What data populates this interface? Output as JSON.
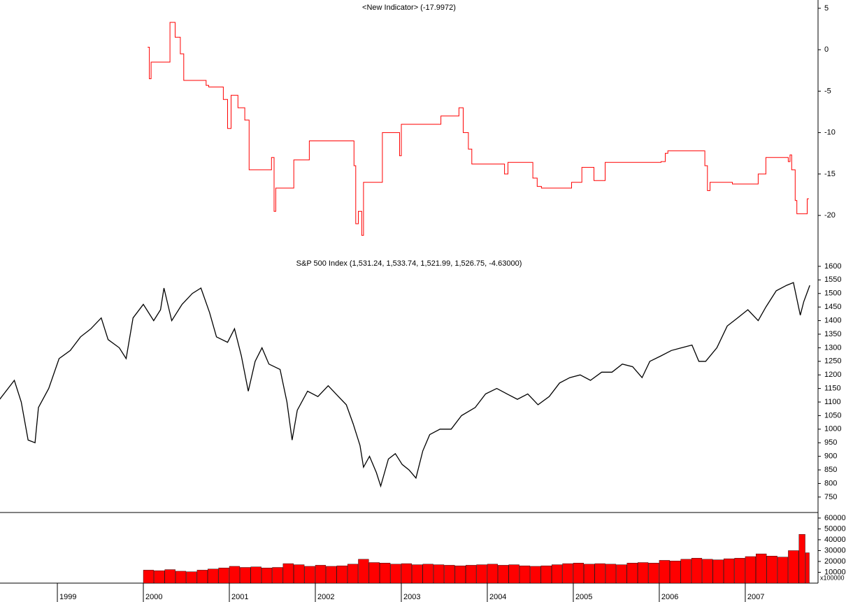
{
  "chart_data": [
    {
      "type": "step",
      "drawstyle": "steps-post",
      "title": "<New Indicator> (-17.9972)",
      "color": "#ff0000",
      "xlim": [
        1998.333,
        2007.83
      ],
      "ylim": [
        -24.8,
        6
      ],
      "yticks": [
        5,
        0,
        -5,
        -10,
        -15,
        -20
      ],
      "x": [
        2000.05,
        2000.07,
        2000.09,
        2000.31,
        2000.37,
        2000.43,
        2000.47,
        2000.73,
        2000.76,
        2000.93,
        2000.98,
        2001.02,
        2001.1,
        2001.18,
        2001.23,
        2001.49,
        2001.52,
        2001.54,
        2001.75,
        2001.93,
        2002.45,
        2002.47,
        2002.5,
        2002.54,
        2002.56,
        2002.78,
        2002.98,
        2003.0,
        2003.46,
        2003.67,
        2003.72,
        2003.78,
        2003.82,
        2004.2,
        2004.24,
        2004.53,
        2004.58,
        2004.63,
        2004.98,
        2005.1,
        2005.24,
        2005.37,
        2006.02,
        2006.07,
        2006.1,
        2006.53,
        2006.56,
        2006.59,
        2006.85,
        2007.15,
        2007.24,
        2007.5,
        2007.52,
        2007.54,
        2007.58,
        2007.6,
        2007.72,
        2007.74
      ],
      "values": [
        0.3,
        -3.5,
        -1.5,
        3.3,
        1.5,
        -0.5,
        -3.7,
        -4.3,
        -4.5,
        -6,
        -9.5,
        -5.5,
        -7,
        -8.5,
        -14.5,
        -13,
        -19.5,
        -16.7,
        -13.3,
        -11,
        -14,
        -21,
        -19.5,
        -22.4,
        -16,
        -10,
        -12.8,
        -9,
        -8,
        -7,
        -10,
        -12,
        -13.8,
        -15,
        -13.6,
        -15.5,
        -16.5,
        -16.7,
        -16,
        -14.2,
        -15.8,
        -13.6,
        -13.5,
        -12.5,
        -12.2,
        -14,
        -17,
        -16,
        -16.2,
        -15,
        -13,
        -13.5,
        -12.7,
        -14.5,
        -18.2,
        -19.8,
        -18,
        -18
      ]
    },
    {
      "type": "line",
      "title": "S&P 500 Index (1,531.24, 1,533.74, 1,521.99, 1,526.75, -4.63000)",
      "color": "#000000",
      "xlim": [
        1998.333,
        2007.83
      ],
      "ylim": [
        693,
        1641
      ],
      "yticks": [
        750,
        800,
        850,
        900,
        950,
        1000,
        1050,
        1100,
        1150,
        1200,
        1250,
        1300,
        1350,
        1400,
        1450,
        1500,
        1550,
        1600
      ],
      "x": [
        1998.33,
        1998.5,
        1998.58,
        1998.66,
        1998.74,
        1998.78,
        1998.9,
        1999.02,
        1999.15,
        1999.27,
        1999.39,
        1999.51,
        1999.59,
        1999.72,
        1999.8,
        1999.88,
        2000.0,
        2000.12,
        2000.2,
        2000.24,
        2000.33,
        2000.45,
        2000.57,
        2000.67,
        2000.77,
        2000.85,
        2000.98,
        2001.06,
        2001.14,
        2001.22,
        2001.3,
        2001.38,
        2001.46,
        2001.59,
        2001.67,
        2001.73,
        2001.79,
        2001.91,
        2002.03,
        2002.15,
        2002.24,
        2002.36,
        2002.44,
        2002.52,
        2002.56,
        2002.63,
        2002.71,
        2002.76,
        2002.85,
        2002.93,
        2003.01,
        2003.09,
        2003.17,
        2003.25,
        2003.33,
        2003.45,
        2003.58,
        2003.7,
        2003.86,
        2003.98,
        2004.11,
        2004.23,
        2004.35,
        2004.47,
        2004.59,
        2004.72,
        2004.84,
        2004.96,
        2005.08,
        2005.2,
        2005.33,
        2005.45,
        2005.57,
        2005.69,
        2005.8,
        2005.89,
        2006.02,
        2006.14,
        2006.26,
        2006.38,
        2006.46,
        2006.54,
        2006.67,
        2006.79,
        2006.91,
        2007.03,
        2007.15,
        2007.24,
        2007.36,
        2007.48,
        2007.56,
        2007.6,
        2007.64,
        2007.68,
        2007.75
      ],
      "values": [
        1110,
        1180,
        1100,
        960,
        950,
        1080,
        1150,
        1260,
        1290,
        1340,
        1370,
        1410,
        1330,
        1300,
        1260,
        1410,
        1460,
        1400,
        1440,
        1520,
        1400,
        1460,
        1500,
        1520,
        1430,
        1340,
        1320,
        1370,
        1270,
        1140,
        1250,
        1300,
        1240,
        1220,
        1100,
        960,
        1070,
        1140,
        1120,
        1160,
        1130,
        1090,
        1020,
        940,
        860,
        900,
        840,
        790,
        890,
        910,
        870,
        850,
        820,
        920,
        980,
        1000,
        1000,
        1050,
        1080,
        1130,
        1150,
        1130,
        1110,
        1130,
        1090,
        1120,
        1170,
        1190,
        1200,
        1180,
        1210,
        1210,
        1240,
        1230,
        1190,
        1250,
        1270,
        1290,
        1300,
        1310,
        1250,
        1250,
        1300,
        1380,
        1410,
        1440,
        1400,
        1450,
        1510,
        1530,
        1540,
        1480,
        1420,
        1470,
        1530
      ]
    },
    {
      "type": "bar",
      "color": "#ff0000",
      "multiplier_label": "x100000",
      "xlim": [
        1998.333,
        2007.83
      ],
      "ylim": [
        0,
        65100
      ],
      "yticks": [
        10000,
        20000,
        30000,
        40000,
        50000,
        60000
      ],
      "xticks": [
        1999,
        2000,
        2001,
        2002,
        2003,
        2004,
        2005,
        2006,
        2007
      ],
      "x": [
        2000.0,
        2000.125,
        2000.25,
        2000.375,
        2000.5,
        2000.625,
        2000.75,
        2000.875,
        2001.0,
        2001.125,
        2001.25,
        2001.375,
        2001.5,
        2001.625,
        2001.75,
        2001.875,
        2002.0,
        2002.125,
        2002.25,
        2002.375,
        2002.5,
        2002.625,
        2002.75,
        2002.875,
        2003.0,
        2003.125,
        2003.25,
        2003.375,
        2003.5,
        2003.625,
        2003.75,
        2003.875,
        2004.0,
        2004.125,
        2004.25,
        2004.375,
        2004.5,
        2004.625,
        2004.75,
        2004.875,
        2005.0,
        2005.125,
        2005.25,
        2005.375,
        2005.5,
        2005.625,
        2005.75,
        2005.875,
        2006.0,
        2006.125,
        2006.25,
        2006.375,
        2006.5,
        2006.625,
        2006.75,
        2006.875,
        2007.0,
        2007.125,
        2007.25,
        2007.375,
        2007.5,
        2007.625,
        2007.7
      ],
      "values": [
        12000,
        11500,
        12500,
        11000,
        10500,
        12000,
        13000,
        14000,
        15500,
        14500,
        15000,
        14000,
        14500,
        18000,
        17000,
        15500,
        16500,
        15500,
        16000,
        17500,
        22000,
        19000,
        18500,
        17500,
        18000,
        17000,
        17500,
        17000,
        16500,
        16000,
        16500,
        17000,
        17500,
        16500,
        17000,
        16000,
        15500,
        16000,
        17000,
        18000,
        18500,
        17500,
        18000,
        17500,
        17000,
        18500,
        19000,
        18500,
        21000,
        20500,
        22000,
        23000,
        22000,
        21500,
        22500,
        23000,
        24500,
        27000,
        25000,
        24000,
        30000,
        45000,
        28000
      ]
    }
  ]
}
